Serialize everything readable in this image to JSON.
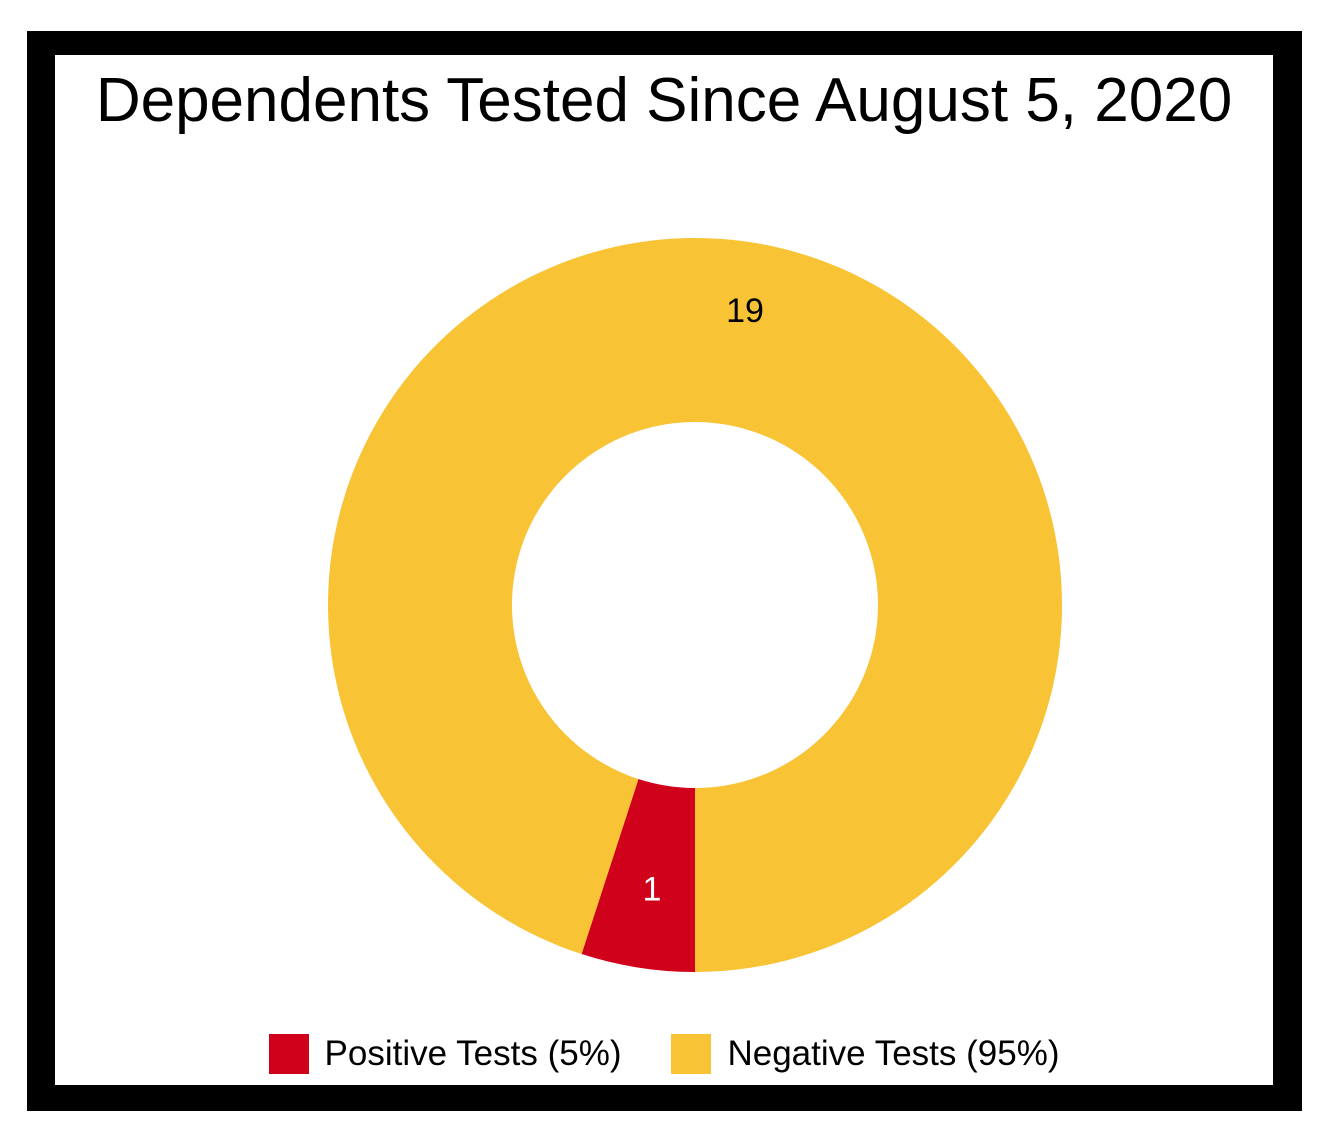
{
  "chart_data": {
    "type": "pie",
    "donut": true,
    "title": "Dependents Tested Since August 5, 2020",
    "slices": [
      {
        "label": "Positive Tests (5%)",
        "value": 1,
        "percent": 5,
        "color": "#d0011b"
      },
      {
        "label": "Negative Tests (95%)",
        "value": 19,
        "percent": 95,
        "color": "#f8c335"
      }
    ],
    "legend_position": "bottom",
    "data_label_colors": [
      "#ffffff",
      "#000000"
    ]
  },
  "colors": {
    "frame": "#000000",
    "background": "#ffffff"
  }
}
